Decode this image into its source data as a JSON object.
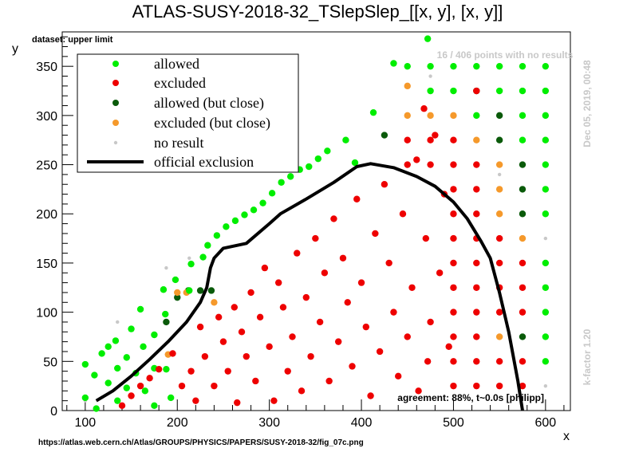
{
  "header": {
    "title": "ATLAS-SUSY-2018-32_TSlepSlep_[[x, y], [x, y]]",
    "dataset": "dataset: upper limit"
  },
  "annotations": {
    "no_results": "16 / 406 points with no results",
    "date": "Dec 05, 2019, 00:48",
    "kfactor": "k-factor 1.20",
    "agreement": "agreement: 88%, t~0.0s [philipp]",
    "url": "https://atlas.web.cern.ch/Atlas/GROUPS/PHYSICS/PAPERS/SUSY-2018-32/fig_07c.png"
  },
  "legend": {
    "allowed": "allowed",
    "excluded": "excluded",
    "allowed_close": "allowed (but close)",
    "excluded_close": "excluded (but close)",
    "no_result": "no result",
    "official": "official exclusion"
  },
  "colors": {
    "allowed": "#00ee00",
    "excluded": "#ee0000",
    "allowed_close": "#0a5a0a",
    "excluded_close": "#f5992b",
    "no_result": "#c8c8c8",
    "official": "#000000"
  },
  "chart_data": {
    "type": "scatter",
    "title": "ATLAS-SUSY-2018-32_TSlepSlep_[[x, y], [x, y]]",
    "xlabel": "x",
    "ylabel": "y",
    "xlim": [
      75,
      627
    ],
    "ylim": [
      0,
      385
    ],
    "xticks": [
      100,
      200,
      300,
      400,
      500,
      600
    ],
    "yticks": [
      0,
      50,
      100,
      150,
      200,
      250,
      300,
      350
    ],
    "legend_position": "top-left",
    "grid": false,
    "official_exclusion": [
      [
        112,
        10
      ],
      [
        130,
        20
      ],
      [
        150,
        35
      ],
      [
        170,
        52
      ],
      [
        190,
        70
      ],
      [
        210,
        90
      ],
      [
        225,
        110
      ],
      [
        232,
        125
      ],
      [
        236,
        145
      ],
      [
        240,
        155
      ],
      [
        250,
        165
      ],
      [
        275,
        170
      ],
      [
        300,
        190
      ],
      [
        312,
        200
      ],
      [
        340,
        215
      ],
      [
        370,
        232
      ],
      [
        395,
        248
      ],
      [
        410,
        251
      ],
      [
        435,
        247
      ],
      [
        460,
        238
      ],
      [
        480,
        228
      ],
      [
        500,
        212
      ],
      [
        515,
        195
      ],
      [
        530,
        172
      ],
      [
        540,
        155
      ],
      [
        550,
        120
      ],
      [
        560,
        80
      ],
      [
        570,
        30
      ],
      [
        575,
        0
      ]
    ],
    "series": [
      {
        "name": "allowed (but close)",
        "points": [
          [
            188,
            90
          ],
          [
            200,
            115
          ],
          [
            212,
            122
          ],
          [
            225,
            122
          ],
          [
            237,
            122
          ],
          [
            425,
            280
          ],
          [
            525,
            325
          ],
          [
            550,
            300
          ],
          [
            550,
            275
          ],
          [
            575,
            250
          ],
          [
            575,
            225
          ],
          [
            575,
            200
          ],
          [
            575,
            75
          ]
        ]
      },
      {
        "name": "excluded (but close)",
        "points": [
          [
            190,
            57
          ],
          [
            200,
            120
          ],
          [
            210,
            120
          ],
          [
            240,
            110
          ],
          [
            450,
            330
          ],
          [
            450,
            300
          ],
          [
            475,
            300
          ],
          [
            500,
            300
          ],
          [
            525,
            275
          ],
          [
            550,
            250
          ],
          [
            550,
            225
          ],
          [
            550,
            200
          ],
          [
            575,
            175
          ],
          [
            550,
            75
          ]
        ]
      },
      {
        "name": "no result",
        "points": [
          [
            100,
            10
          ],
          [
            135,
            90
          ],
          [
            188,
            145
          ],
          [
            213,
            155
          ],
          [
            475,
            340
          ],
          [
            550,
            240
          ],
          [
            600,
            175
          ],
          [
            600,
            25
          ]
        ]
      },
      {
        "name": "allowed",
        "points": [
          [
            100,
            47
          ],
          [
            100,
            13
          ],
          [
            110,
            36
          ],
          [
            112,
            2
          ],
          [
            118,
            58
          ],
          [
            125,
            65
          ],
          [
            125,
            28
          ],
          [
            133,
            71
          ],
          [
            135,
            43
          ],
          [
            135,
            10
          ],
          [
            145,
            54
          ],
          [
            145,
            23
          ],
          [
            150,
            83
          ],
          [
            155,
            38
          ],
          [
            160,
            103
          ],
          [
            163,
            65
          ],
          [
            165,
            20
          ],
          [
            175,
            77
          ],
          [
            175,
            43
          ],
          [
            175,
            5
          ],
          [
            185,
            123
          ],
          [
            187,
            98
          ],
          [
            188,
            42
          ],
          [
            193,
            13
          ],
          [
            198,
            133
          ],
          [
            213,
            122
          ],
          [
            215,
            149
          ],
          [
            228,
            156
          ],
          [
            233,
            168
          ],
          [
            243,
            178
          ],
          [
            253,
            187
          ],
          [
            263,
            193
          ],
          [
            273,
            199
          ],
          [
            283,
            204
          ],
          [
            293,
            211
          ],
          [
            303,
            221
          ],
          [
            313,
            232
          ],
          [
            323,
            238
          ],
          [
            333,
            245
          ],
          [
            343,
            248
          ],
          [
            353,
            256
          ],
          [
            363,
            264
          ],
          [
            383,
            275
          ],
          [
            393,
            252
          ],
          [
            413,
            303
          ],
          [
            435,
            353
          ],
          [
            472,
            378
          ],
          [
            450,
            350
          ],
          [
            475,
            350
          ],
          [
            500,
            350
          ],
          [
            525,
            350
          ],
          [
            550,
            350
          ],
          [
            575,
            350
          ],
          [
            600,
            350
          ],
          [
            475,
            325
          ],
          [
            500,
            325
          ],
          [
            550,
            325
          ],
          [
            575,
            325
          ],
          [
            600,
            325
          ],
          [
            525,
            300
          ],
          [
            575,
            300
          ],
          [
            600,
            300
          ],
          [
            575,
            275
          ],
          [
            600,
            275
          ],
          [
            600,
            250
          ],
          [
            600,
            225
          ],
          [
            600,
            200
          ],
          [
            600,
            150
          ],
          [
            600,
            125
          ],
          [
            600,
            100
          ],
          [
            600,
            75
          ],
          [
            600,
            50
          ]
        ]
      },
      {
        "name": "excluded",
        "points": [
          [
            140,
            5
          ],
          [
            150,
            15
          ],
          [
            160,
            25
          ],
          [
            170,
            33
          ],
          [
            180,
            42
          ],
          [
            195,
            58
          ],
          [
            205,
            25
          ],
          [
            215,
            40
          ],
          [
            220,
            10
          ],
          [
            225,
            85
          ],
          [
            230,
            55
          ],
          [
            240,
            25
          ],
          [
            245,
            95
          ],
          [
            250,
            70
          ],
          [
            255,
            40
          ],
          [
            262,
            105
          ],
          [
            265,
            8
          ],
          [
            270,
            80
          ],
          [
            275,
            55
          ],
          [
            280,
            120
          ],
          [
            285,
            30
          ],
          [
            290,
            95
          ],
          [
            295,
            145
          ],
          [
            300,
            65
          ],
          [
            305,
            10
          ],
          [
            310,
            130
          ],
          [
            315,
            105
          ],
          [
            320,
            40
          ],
          [
            325,
            75
          ],
          [
            330,
            160
          ],
          [
            335,
            20
          ],
          [
            340,
            115
          ],
          [
            345,
            55
          ],
          [
            350,
            175
          ],
          [
            355,
            90
          ],
          [
            360,
            140
          ],
          [
            365,
            30
          ],
          [
            370,
            195
          ],
          [
            375,
            70
          ],
          [
            380,
            155
          ],
          [
            385,
            110
          ],
          [
            390,
            45
          ],
          [
            395,
            215
          ],
          [
            400,
            130
          ],
          [
            405,
            85
          ],
          [
            410,
            15
          ],
          [
            415,
            180
          ],
          [
            420,
            60
          ],
          [
            425,
            230
          ],
          [
            430,
            150
          ],
          [
            435,
            100
          ],
          [
            440,
            35
          ],
          [
            445,
            200
          ],
          [
            450,
            75
          ],
          [
            455,
            125
          ],
          [
            460,
            255
          ],
          [
            462,
            20
          ],
          [
            468,
            307
          ],
          [
            470,
            175
          ],
          [
            472,
            50
          ],
          [
            475,
            90
          ],
          [
            480,
            280
          ],
          [
            485,
            140
          ],
          [
            490,
            220
          ],
          [
            495,
            65
          ],
          [
            500,
            275
          ],
          [
            500,
            250
          ],
          [
            500,
            225
          ],
          [
            500,
            200
          ],
          [
            500,
            175
          ],
          [
            500,
            150
          ],
          [
            500,
            125
          ],
          [
            500,
            100
          ],
          [
            500,
            75
          ],
          [
            500,
            50
          ],
          [
            500,
            25
          ],
          [
            525,
            325
          ],
          [
            525,
            250
          ],
          [
            525,
            225
          ],
          [
            525,
            200
          ],
          [
            525,
            175
          ],
          [
            525,
            150
          ],
          [
            525,
            125
          ],
          [
            525,
            100
          ],
          [
            525,
            75
          ],
          [
            525,
            50
          ],
          [
            525,
            25
          ],
          [
            550,
            175
          ],
          [
            550,
            150
          ],
          [
            550,
            125
          ],
          [
            550,
            100
          ],
          [
            550,
            50
          ],
          [
            550,
            25
          ],
          [
            575,
            150
          ],
          [
            575,
            125
          ],
          [
            575,
            100
          ],
          [
            575,
            50
          ],
          [
            575,
            25
          ],
          [
            450,
            275
          ],
          [
            475,
            275
          ],
          [
            475,
            250
          ],
          [
            450,
            250
          ]
        ]
      }
    ]
  }
}
